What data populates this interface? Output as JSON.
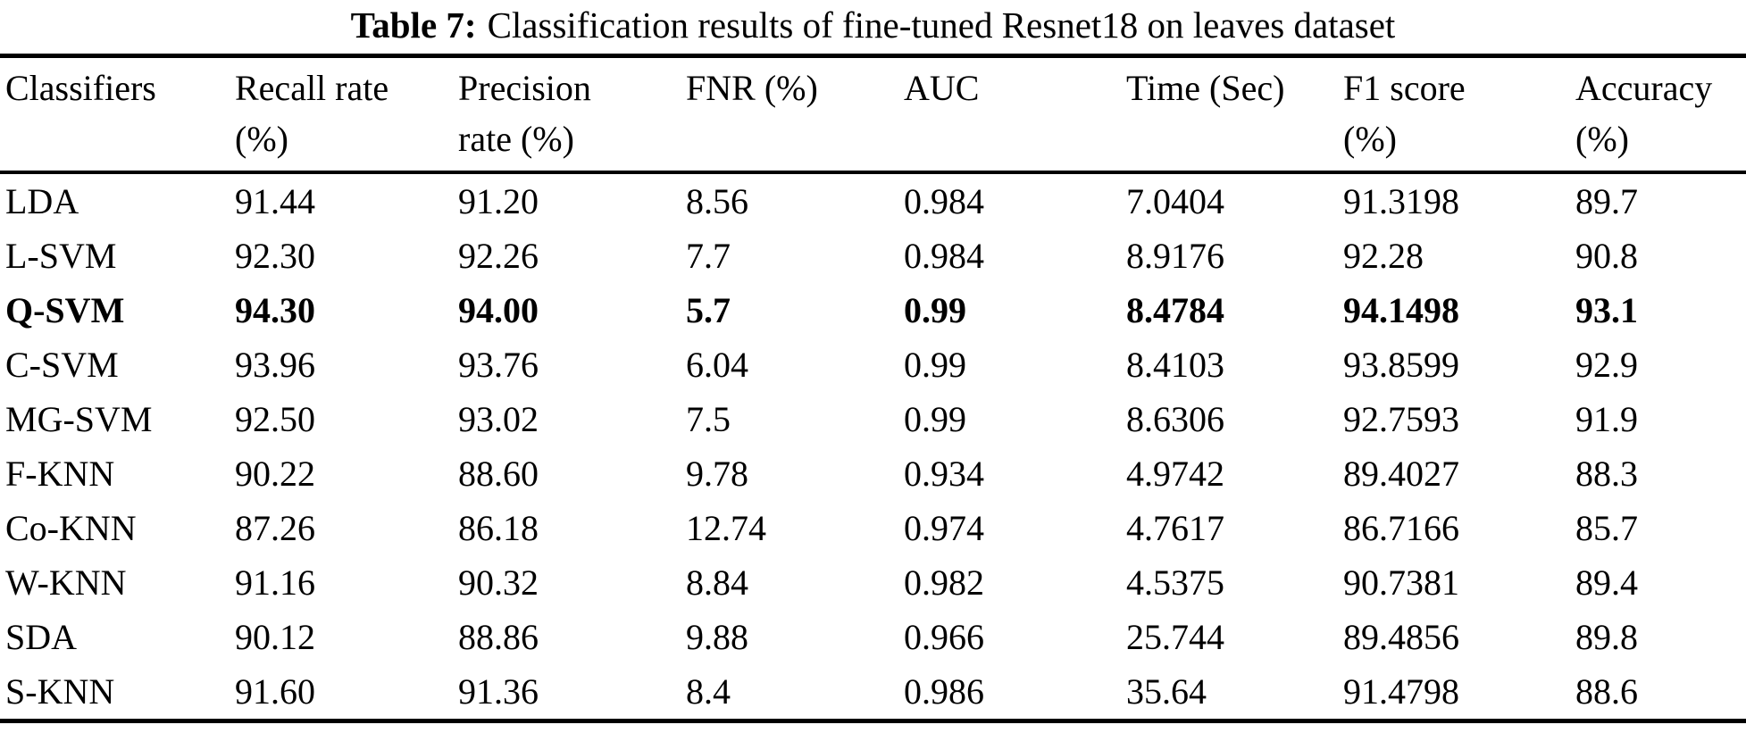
{
  "page": {
    "background_color": "#ffffff",
    "text_color": "#000000",
    "rule_color": "#000000"
  },
  "caption": {
    "label": "Table 7:",
    "title": "Classification results of fine-tuned Resnet18 on leaves dataset"
  },
  "table": {
    "columns": [
      {
        "line1": "Classifiers",
        "line2": ""
      },
      {
        "line1": "Recall rate",
        "line2": "(%)"
      },
      {
        "line1": "Precision",
        "line2": "rate (%)"
      },
      {
        "line1": "FNR (%)",
        "line2": ""
      },
      {
        "line1": "AUC",
        "line2": ""
      },
      {
        "line1": "Time (Sec)",
        "line2": ""
      },
      {
        "line1": "F1 score",
        "line2": "(%)"
      },
      {
        "line1": "Accuracy",
        "line2": "(%)"
      }
    ],
    "rows": [
      {
        "bold": false,
        "cells": [
          "LDA",
          "91.44",
          "91.20",
          "8.56",
          "0.984",
          "7.0404",
          "91.3198",
          "89.7"
        ]
      },
      {
        "bold": false,
        "cells": [
          "L-SVM",
          "92.30",
          "92.26",
          "7.7",
          "0.984",
          "8.9176",
          "92.28",
          "90.8"
        ]
      },
      {
        "bold": true,
        "cells": [
          "Q-SVM",
          "94.30",
          "94.00",
          "5.7",
          "0.99",
          "8.4784",
          "94.1498",
          "93.1"
        ]
      },
      {
        "bold": false,
        "cells": [
          "C-SVM",
          "93.96",
          "93.76",
          "6.04",
          "0.99",
          "8.4103",
          "93.8599",
          "92.9"
        ]
      },
      {
        "bold": false,
        "cells": [
          "MG-SVM",
          "92.50",
          "93.02",
          "7.5",
          "0.99",
          "8.6306",
          "92.7593",
          "91.9"
        ]
      },
      {
        "bold": false,
        "cells": [
          "F-KNN",
          "90.22",
          "88.60",
          "9.78",
          "0.934",
          "4.9742",
          "89.4027",
          "88.3"
        ]
      },
      {
        "bold": false,
        "cells": [
          "Co-KNN",
          "87.26",
          "86.18",
          "12.74",
          "0.974",
          "4.7617",
          "86.7166",
          "85.7"
        ]
      },
      {
        "bold": false,
        "cells": [
          "W-KNN",
          "91.16",
          "90.32",
          "8.84",
          "0.982",
          "4.5375",
          "90.7381",
          "89.4"
        ]
      },
      {
        "bold": false,
        "cells": [
          "SDA",
          "90.12",
          "88.86",
          "9.88",
          "0.966",
          "25.744",
          "89.4856",
          "89.8"
        ]
      },
      {
        "bold": false,
        "cells": [
          "S-KNN",
          "91.60",
          "91.36",
          "8.4",
          "0.986",
          "35.64",
          "91.4798",
          "88.6"
        ]
      }
    ]
  },
  "chart_data": {
    "type": "table",
    "title": "Table 7: Classification results of fine-tuned Resnet18 on leaves dataset",
    "columns": [
      "Classifiers",
      "Recall rate (%)",
      "Precision rate (%)",
      "FNR (%)",
      "AUC",
      "Time (Sec)",
      "F1 score (%)",
      "Accuracy (%)"
    ],
    "rows": [
      [
        "LDA",
        91.44,
        91.2,
        8.56,
        0.984,
        7.0404,
        91.3198,
        89.7
      ],
      [
        "L-SVM",
        92.3,
        92.26,
        7.7,
        0.984,
        8.9176,
        92.28,
        90.8
      ],
      [
        "Q-SVM",
        94.3,
        94.0,
        5.7,
        0.99,
        8.4784,
        94.1498,
        93.1
      ],
      [
        "C-SVM",
        93.96,
        93.76,
        6.04,
        0.99,
        8.4103,
        93.8599,
        92.9
      ],
      [
        "MG-SVM",
        92.5,
        93.02,
        7.5,
        0.99,
        8.6306,
        92.7593,
        91.9
      ],
      [
        "F-KNN",
        90.22,
        88.6,
        9.78,
        0.934,
        4.9742,
        89.4027,
        88.3
      ],
      [
        "Co-KNN",
        87.26,
        86.18,
        12.74,
        0.974,
        4.7617,
        86.7166,
        85.7
      ],
      [
        "W-KNN",
        91.16,
        90.32,
        8.84,
        0.982,
        4.5375,
        90.7381,
        89.4
      ],
      [
        "SDA",
        90.12,
        88.86,
        9.88,
        0.966,
        25.744,
        89.4856,
        89.8
      ],
      [
        "S-KNN",
        91.6,
        91.36,
        8.4,
        0.986,
        35.64,
        91.4798,
        88.6
      ]
    ],
    "highlighted_row": "Q-SVM"
  }
}
